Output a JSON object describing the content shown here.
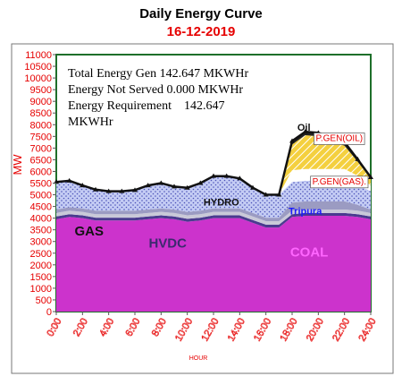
{
  "chart_data": {
    "type": "area",
    "title": "Daily Energy Curve",
    "subtitle": "16-12-2019",
    "xlabel": "HOUR",
    "ylabel": "MW",
    "ylim": [
      0,
      11000
    ],
    "xlim": [
      0,
      24
    ],
    "y_ticks": [
      "0",
      "500",
      "1000",
      "1500",
      "2000",
      "2500",
      "3000",
      "3500",
      "4000",
      "4500",
      "5000",
      "5500",
      "6000",
      "6500",
      "7000",
      "7500",
      "8000",
      "8500",
      "9000",
      "9500",
      "10000",
      "10500",
      "11000"
    ],
    "x_ticks": [
      "0:00",
      "2:00",
      "4:00",
      "6:00",
      "8:00",
      "10:00",
      "12:00",
      "14:00",
      "16:00",
      "18:00",
      "20:00",
      "22:00",
      "24:00"
    ],
    "x_tick_values": [
      0,
      2,
      4,
      6,
      8,
      10,
      12,
      14,
      16,
      18,
      20,
      22,
      24
    ],
    "grid": false,
    "stack_hours": [
      0,
      1,
      2,
      3,
      4,
      5,
      6,
      7,
      8,
      9,
      10,
      11,
      12,
      13,
      14,
      15,
      16,
      17,
      18,
      19,
      20,
      21,
      22,
      23,
      24
    ],
    "series": [
      {
        "name": "COAL",
        "color": "#cc33cc",
        "values": [
          3950,
          4050,
          4000,
          3900,
          3900,
          3900,
          3900,
          3950,
          4000,
          3950,
          3850,
          3900,
          4000,
          4000,
          4000,
          3800,
          3600,
          3600,
          4050,
          4100,
          4100,
          4100,
          4100,
          4050,
          3950
        ]
      },
      {
        "name": "HVDC",
        "color": "#4a3b8f",
        "values": [
          120,
          120,
          120,
          120,
          120,
          120,
          120,
          120,
          120,
          120,
          120,
          120,
          120,
          120,
          120,
          120,
          120,
          120,
          120,
          120,
          120,
          120,
          120,
          120,
          120
        ]
      },
      {
        "name": "GAS",
        "color": "#c9c9d8",
        "values": [
          150,
          150,
          150,
          150,
          150,
          150,
          150,
          150,
          150,
          150,
          150,
          150,
          150,
          150,
          150,
          150,
          150,
          150,
          150,
          150,
          150,
          150,
          150,
          150,
          150
        ]
      },
      {
        "name": "Tripura",
        "color": "#9b9bc2",
        "values": [
          150,
          150,
          150,
          150,
          150,
          150,
          150,
          150,
          150,
          150,
          150,
          150,
          150,
          150,
          150,
          150,
          150,
          150,
          350,
          350,
          350,
          350,
          350,
          250,
          150
        ]
      },
      {
        "name": "HYDRO",
        "color": "#b7c0f0",
        "values": [
          1180,
          1130,
          980,
          900,
          830,
          830,
          880,
          1030,
          1080,
          980,
          1030,
          1180,
          1380,
          1380,
          1280,
          1080,
          980,
          980,
          880,
          880,
          880,
          880,
          880,
          850,
          780
        ]
      },
      {
        "name": "P.GEN(GAS)",
        "color": "#ffffff",
        "values": [
          0,
          0,
          0,
          0,
          0,
          0,
          0,
          0,
          0,
          0,
          0,
          0,
          0,
          0,
          0,
          0,
          0,
          0,
          500,
          500,
          500,
          500,
          500,
          400,
          250
        ]
      },
      {
        "name": "P.GEN(OIL)",
        "color": "#f4d03f",
        "values": [
          0,
          0,
          0,
          0,
          0,
          0,
          0,
          0,
          0,
          0,
          0,
          0,
          0,
          0,
          0,
          0,
          0,
          0,
          1100,
          1450,
          1400,
          1200,
          1000,
          600,
          300
        ]
      },
      {
        "name": "Oil",
        "color": "#222222",
        "values": [
          0,
          0,
          0,
          0,
          0,
          0,
          0,
          0,
          0,
          0,
          0,
          0,
          0,
          0,
          0,
          0,
          0,
          0,
          150,
          150,
          150,
          150,
          150,
          100,
          50
        ]
      }
    ],
    "series_labels": [
      {
        "text": "GAS",
        "x": 2.5,
        "y": 3250,
        "color": "#111111"
      },
      {
        "text": "HVDC",
        "x": 8.5,
        "y": 2750,
        "color": "#3c2a6e"
      },
      {
        "text": "COAL",
        "x": 19.3,
        "y": 2350,
        "color": "#ff66ff"
      },
      {
        "text": "HYDRO",
        "x": 12.6,
        "y": 4550,
        "color": "#111111"
      },
      {
        "text": "Tripura",
        "x": 19.0,
        "y": 4150,
        "color": "#1a1aff"
      },
      {
        "text": "P.GEN(GAS).",
        "x": 21.6,
        "y": 5450,
        "color": "#e60000"
      },
      {
        "text": "P.GEN(OIL)",
        "x": 21.6,
        "y": 7300,
        "color": "#e60000"
      },
      {
        "text": "Oil",
        "x": 18.9,
        "y": 7750,
        "color": "#111111"
      }
    ],
    "annotations": [
      "Total Energy Gen 142.647 MKWHr",
      "Energy Not Served  0.000 MKWHr",
      "Energy Requirement    142.647",
      "MKWHr"
    ]
  }
}
